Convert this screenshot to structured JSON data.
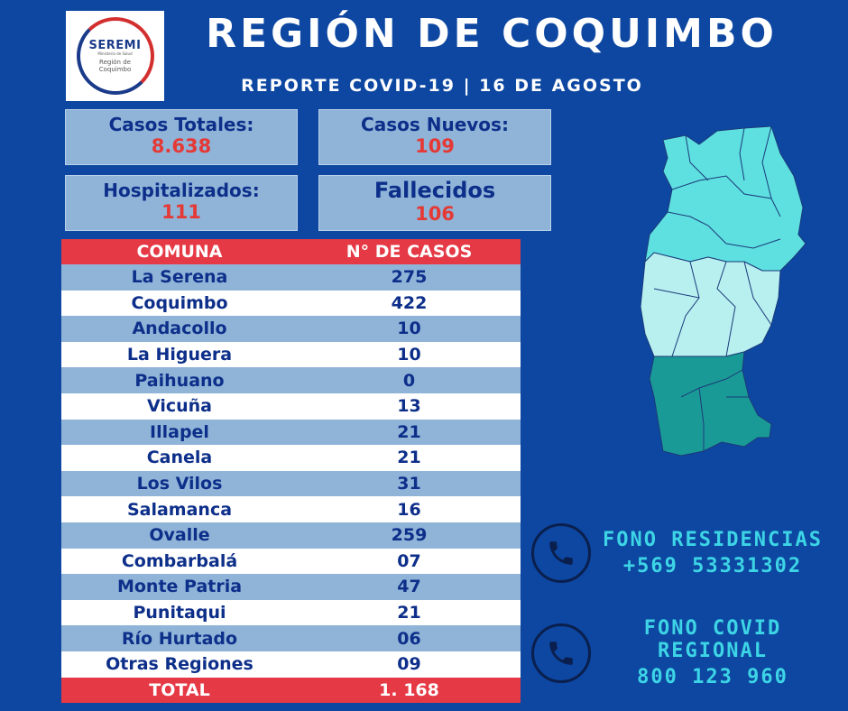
{
  "logo": {
    "title": "SEREMI",
    "small": "Ministerio de Salud",
    "sub1": "Región de",
    "sub2": "Coquimbo"
  },
  "title": "REGIÓN DE COQUIMBO",
  "subtitle": "REPORTE COVID-19 | 16 DE AGOSTO",
  "stats": {
    "total": {
      "label": "Casos Totales:",
      "value": "8.638"
    },
    "new": {
      "label": "Casos Nuevos:",
      "value": "109"
    },
    "hosp": {
      "label": "Hospitalizados:",
      "value": "111"
    },
    "dead": {
      "label": "Fallecidos",
      "value": "106"
    }
  },
  "table": {
    "header": {
      "name": "COMUNA",
      "value": "N° DE CASOS"
    },
    "rows": [
      {
        "name": "La Serena",
        "value": "275"
      },
      {
        "name": "Coquimbo",
        "value": "422"
      },
      {
        "name": "Andacollo",
        "value": "10"
      },
      {
        "name": "La Higuera",
        "value": "10"
      },
      {
        "name": "Paihuano",
        "value": "0"
      },
      {
        "name": "Vicuña",
        "value": "13"
      },
      {
        "name": "Illapel",
        "value": "21"
      },
      {
        "name": "Canela",
        "value": "21"
      },
      {
        "name": "Los Vilos",
        "value": "31"
      },
      {
        "name": "Salamanca",
        "value": "16"
      },
      {
        "name": "Ovalle",
        "value": "259"
      },
      {
        "name": "Combarbalá",
        "value": "07"
      },
      {
        "name": "Monte Patria",
        "value": "47"
      },
      {
        "name": "Punitaqui",
        "value": "21"
      },
      {
        "name": "Río Hurtado",
        "value": "06"
      },
      {
        "name": "Otras Regiones",
        "value": "09"
      }
    ],
    "total": {
      "name": "TOTAL",
      "value": "1. 168"
    }
  },
  "phones": [
    {
      "label": "FONO RESIDENCIAS",
      "number": "+569 53331302"
    },
    {
      "label": "FONO COVID REGIONAL",
      "number": "800 123 960"
    }
  ],
  "colors": {
    "background": "#0d47a1",
    "accent": "#e53945",
    "row_alt": "#8fb4d8",
    "phone_text": "#3dd5e6"
  }
}
